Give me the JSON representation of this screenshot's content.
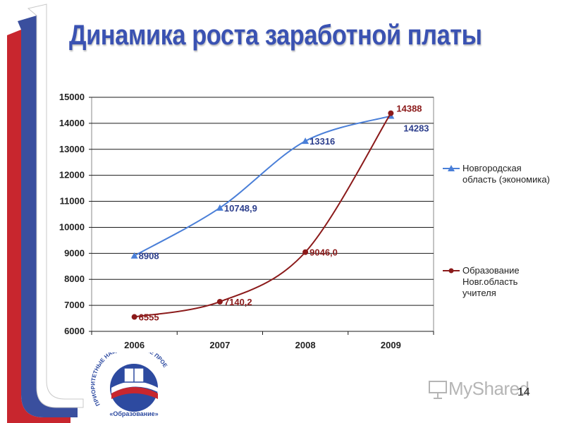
{
  "slide": {
    "title": "Динамика роста заработной платы",
    "page_number": "14",
    "watermark": "MyShared"
  },
  "logo": {
    "text_arc": "ПРИОРИТЕТНЫЕ НАЦИОНАЛЬНЫЕ ПРОЕКТЫ",
    "text_bottom": "«Образование»"
  },
  "colors": {
    "title": "#3a52b2",
    "series_1": "#4a7fd8",
    "series_2": "#8b1a1a",
    "flag_white": "#ffffff",
    "flag_blue": "#3a4f9e",
    "flag_red": "#c8262e"
  },
  "chart_data": {
    "type": "line",
    "x": [
      "2006",
      "2007",
      "2008",
      "2009"
    ],
    "ylim": [
      6000,
      15000
    ],
    "yticks": [
      "6000",
      "7000",
      "8000",
      "9000",
      "10000",
      "11000",
      "12000",
      "13000",
      "14000",
      "15000"
    ],
    "grid": true,
    "legend_position": "right",
    "series": [
      {
        "name_lines": [
          "Новгородская",
          "область (экономика)"
        ],
        "values": [
          8908,
          10748.9,
          13316,
          14283
        ],
        "labels": [
          "8908",
          "10748,9",
          "13316",
          "14283"
        ],
        "marker": "triangle",
        "color": "#4a7fd8"
      },
      {
        "name_lines": [
          "Образование",
          "Новг.область",
          "учителя"
        ],
        "values": [
          6555,
          7140.2,
          9046.0,
          14388
        ],
        "labels": [
          "6555",
          "7140,2",
          "9046,0",
          "14388"
        ],
        "marker": "circle",
        "color": "#8b1a1a"
      }
    ]
  }
}
